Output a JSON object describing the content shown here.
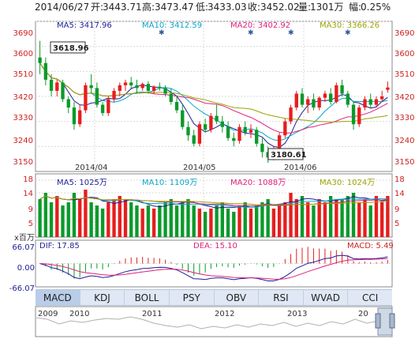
{
  "header": {
    "date": "2014/06/27",
    "open_label": "开:",
    "open": "3443.71",
    "high_label": "高:",
    "high": "3473.47",
    "low_label": "低:",
    "low": "3433.03",
    "close_label": "收:",
    "close": "3452.02",
    "volume_label": "量:",
    "volume": "1301万",
    "change_label": "幅:",
    "change": "0.25%"
  },
  "price_panel": {
    "y_ticks": [
      "3690",
      "3600",
      "3510",
      "3420",
      "3330",
      "3240",
      "3150"
    ],
    "x_labels": [
      "2014/04",
      "2014/05",
      "2014/06"
    ],
    "legend": [
      {
        "label": "MA5: 3417.96",
        "color": "#1e1e9a"
      },
      {
        "label": "MA10: 3412.59",
        "color": "#0aa5c8"
      },
      {
        "label": "MA20: 3402.92",
        "color": "#e0207a"
      },
      {
        "label": "MA30: 3366.26",
        "color": "#9aa400"
      }
    ],
    "high_marker": "3618.96",
    "low_marker": "3180.61"
  },
  "volume_panel": {
    "y_ticks": [
      "18",
      "14",
      "9",
      "5"
    ],
    "legend": [
      {
        "label": "MA5: 1025万",
        "color": "#1e1e9a"
      },
      {
        "label": "MA10: 1109万",
        "color": "#0aa5c8"
      },
      {
        "label": "MA20: 1088万",
        "color": "#e0207a"
      },
      {
        "label": "MA30: 1024万",
        "color": "#9aa400"
      }
    ]
  },
  "macd_panel": {
    "unit": "x百万",
    "y_ticks": [
      "66.07",
      "0.00",
      "-66.07"
    ],
    "dif": "DIF: 17.85",
    "dea": "DEA: 15.10",
    "macd": "MACD: 5.49"
  },
  "indicator_tabs": [
    "MACD",
    "KDJ",
    "BOLL",
    "PSY",
    "OBV",
    "RSI",
    "WVAD",
    "CCI"
  ],
  "active_tab": "MACD",
  "overview": {
    "years": [
      "2009",
      "2010",
      "2011",
      "2012",
      "2013",
      "20"
    ]
  },
  "colors": {
    "up": "#e61e1e",
    "down": "#0a9a2a",
    "grid": "#d9d9d9",
    "frame": "#888888",
    "label": "#cc2222",
    "marker_icon": "#2a5aa0"
  },
  "chart_data": {
    "type": "candlestick",
    "period": "daily",
    "y_range": [
      3150,
      3690
    ],
    "volume_unit": "万",
    "volume_y_range": [
      0,
      20
    ],
    "macd_y_range": [
      -66.07,
      66.07
    ],
    "candles": [
      [
        3560,
        3620,
        3500,
        3540
      ],
      [
        3540,
        3560,
        3460,
        3480
      ],
      [
        3480,
        3500,
        3420,
        3440
      ],
      [
        3440,
        3480,
        3420,
        3470
      ],
      [
        3470,
        3480,
        3400,
        3410
      ],
      [
        3410,
        3420,
        3360,
        3380
      ],
      [
        3380,
        3400,
        3300,
        3320
      ],
      [
        3320,
        3390,
        3310,
        3370
      ],
      [
        3370,
        3470,
        3360,
        3460
      ],
      [
        3460,
        3500,
        3430,
        3450
      ],
      [
        3450,
        3470,
        3380,
        3390
      ],
      [
        3390,
        3400,
        3350,
        3360
      ],
      [
        3360,
        3420,
        3350,
        3410
      ],
      [
        3410,
        3450,
        3400,
        3440
      ],
      [
        3440,
        3470,
        3420,
        3460
      ],
      [
        3460,
        3480,
        3440,
        3470
      ],
      [
        3470,
        3490,
        3450,
        3460
      ],
      [
        3460,
        3480,
        3430,
        3450
      ],
      [
        3450,
        3470,
        3440,
        3465
      ],
      [
        3465,
        3475,
        3430,
        3440
      ],
      [
        3440,
        3460,
        3430,
        3455
      ],
      [
        3455,
        3470,
        3440,
        3450
      ],
      [
        3450,
        3460,
        3420,
        3430
      ],
      [
        3430,
        3450,
        3390,
        3400
      ],
      [
        3400,
        3420,
        3360,
        3370
      ],
      [
        3370,
        3390,
        3300,
        3310
      ],
      [
        3310,
        3330,
        3260,
        3280
      ],
      [
        3280,
        3300,
        3240,
        3250
      ],
      [
        3250,
        3330,
        3240,
        3320
      ],
      [
        3320,
        3340,
        3290,
        3300
      ],
      [
        3300,
        3360,
        3290,
        3350
      ],
      [
        3350,
        3390,
        3320,
        3330
      ],
      [
        3330,
        3350,
        3290,
        3310
      ],
      [
        3310,
        3330,
        3260,
        3270
      ],
      [
        3270,
        3290,
        3240,
        3260
      ],
      [
        3260,
        3320,
        3250,
        3310
      ],
      [
        3310,
        3330,
        3280,
        3290
      ],
      [
        3290,
        3320,
        3270,
        3300
      ],
      [
        3300,
        3310,
        3240,
        3250
      ],
      [
        3250,
        3270,
        3200,
        3220
      ],
      [
        3220,
        3240,
        3181,
        3200
      ],
      [
        3200,
        3240,
        3190,
        3230
      ],
      [
        3230,
        3290,
        3220,
        3280
      ],
      [
        3280,
        3340,
        3270,
        3330
      ],
      [
        3330,
        3390,
        3320,
        3380
      ],
      [
        3380,
        3440,
        3370,
        3430
      ],
      [
        3430,
        3450,
        3380,
        3390
      ],
      [
        3390,
        3420,
        3360,
        3410
      ],
      [
        3410,
        3430,
        3370,
        3380
      ],
      [
        3380,
        3420,
        3370,
        3415
      ],
      [
        3415,
        3440,
        3400,
        3430
      ],
      [
        3430,
        3450,
        3390,
        3400
      ],
      [
        3400,
        3470,
        3395,
        3460
      ],
      [
        3460,
        3480,
        3420,
        3430
      ],
      [
        3430,
        3440,
        3380,
        3390
      ],
      [
        3390,
        3400,
        3300,
        3320
      ],
      [
        3320,
        3390,
        3310,
        3380
      ],
      [
        3380,
        3420,
        3370,
        3410
      ],
      [
        3410,
        3430,
        3380,
        3390
      ],
      [
        3390,
        3420,
        3380,
        3410
      ],
      [
        3410,
        3440,
        3400,
        3420
      ],
      [
        3443.71,
        3473.47,
        3433.03,
        3452.02
      ]
    ],
    "volumes": [
      12,
      14,
      11,
      13,
      10,
      11,
      14,
      12,
      15,
      11,
      10,
      9,
      11,
      12,
      13,
      12,
      11,
      10,
      9,
      10,
      9,
      10,
      11,
      12,
      10,
      11,
      12,
      10,
      9,
      8,
      9,
      10,
      11,
      9,
      8,
      10,
      11,
      9,
      10,
      11,
      12,
      9,
      10,
      11,
      14,
      12,
      13,
      11,
      10,
      12,
      11,
      13,
      12,
      12,
      13,
      14,
      11,
      12,
      10,
      13,
      11,
      13
    ]
  }
}
